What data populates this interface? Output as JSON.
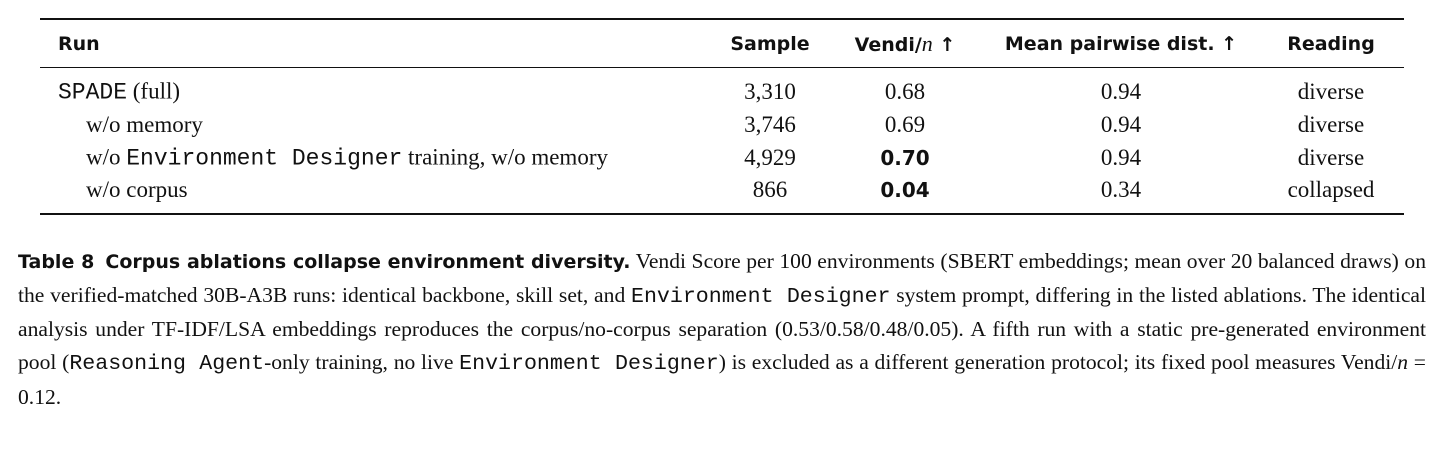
{
  "table": {
    "headers": [
      "Run",
      "Sample",
      [
        "Vendi/",
        "n",
        " ↑"
      ],
      "Mean pairwise dist. ↑",
      "Reading"
    ],
    "rows": [
      {
        "run": [
          "SPADE",
          " (full)"
        ],
        "sample": "3,310",
        "vendi": "0.68",
        "dist": "0.94",
        "reading": "diverse"
      },
      {
        "run": [
          "w/o memory"
        ],
        "sample": "3,746",
        "vendi": "0.69",
        "dist": "0.94",
        "reading": "diverse"
      },
      {
        "run": [
          "w/o ",
          "Environment Designer",
          " training, w/o memory"
        ],
        "sample": "4,929",
        "vendi": "0.70",
        "dist": "0.94",
        "reading": "diverse"
      },
      {
        "run": [
          "w/o corpus"
        ],
        "sample": "866",
        "vendi": "0.04",
        "dist": "0.34",
        "reading": "collapsed"
      }
    ]
  },
  "caption": {
    "label": "Table 8",
    "title": "Corpus ablations collapse environment diversity.",
    "body": [
      "Vendi Score per 100 environments (SBERT embeddings; mean over 20 balanced draws) on the verified-matched 30B-A3B runs: identical backbone, skill set, and ",
      "Environment Designer",
      " system prompt, differing in the listed ablations. The identical analysis under TF-IDF/LSA embeddings reproduces the corpus/no-corpus separation (0.53/0.58/0.48/0.05). A fifth run with a static pre-generated environment pool (",
      "Reasoning Agent",
      "-only training, no live ",
      "Environment Designer",
      ") is excluded as a different generation protocol; its fixed pool measures Vendi/",
      "n",
      " = 0.12."
    ]
  }
}
